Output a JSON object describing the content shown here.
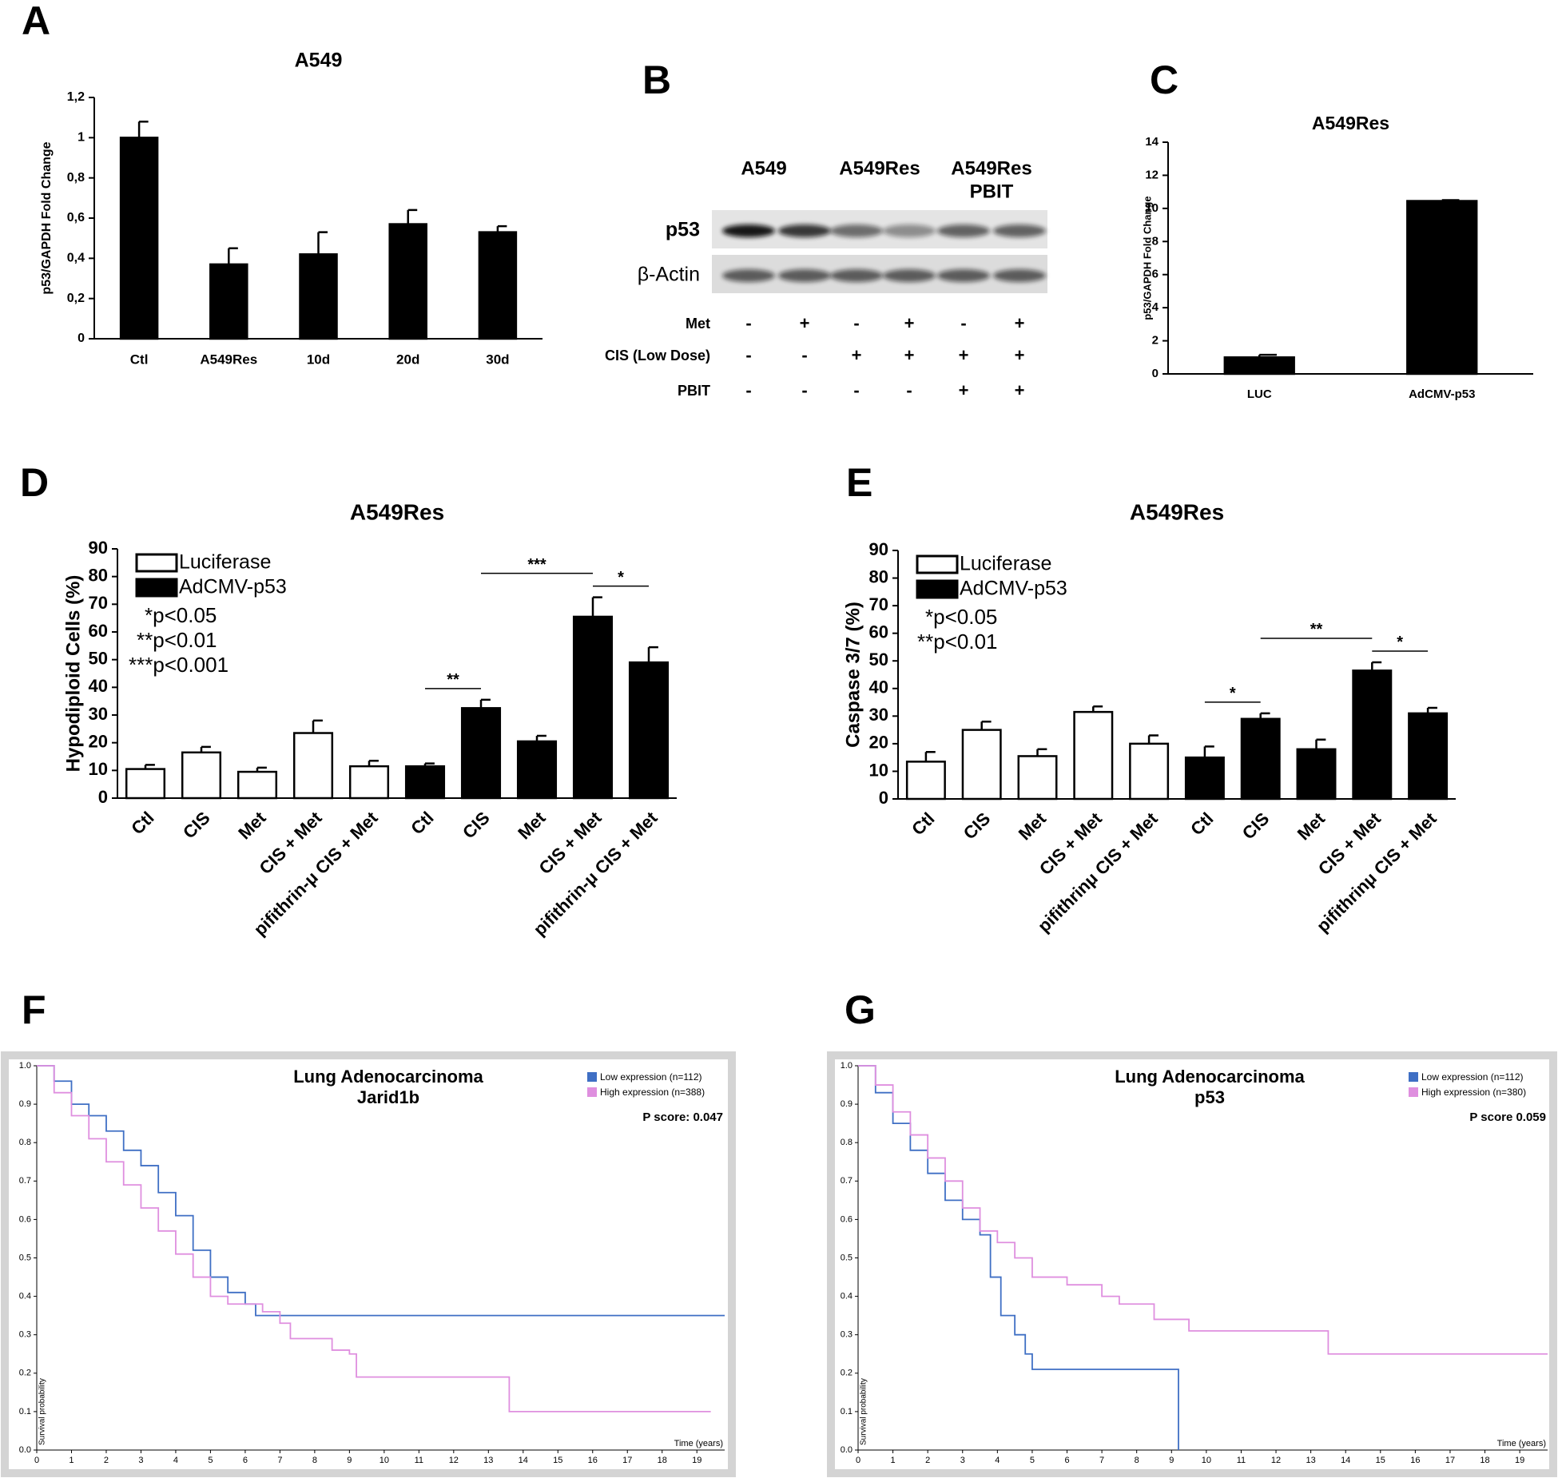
{
  "panel_labels": [
    "A",
    "B",
    "C",
    "D",
    "E",
    "F",
    "G"
  ],
  "blot": {
    "header_lines": [
      [
        "A549"
      ],
      [
        "A549Res"
      ],
      [
        "A549Res",
        "PBIT"
      ]
    ],
    "bands": [
      "p53",
      "β-Actin"
    ],
    "conditions": [
      {
        "label": "Met",
        "values": [
          "-",
          "+",
          "-",
          "+",
          "-",
          "+"
        ]
      },
      {
        "label": "CIS (Low Dose)",
        "values": [
          "-",
          "-",
          "+",
          "+",
          "+",
          "+"
        ]
      },
      {
        "label": "PBIT",
        "values": [
          "-",
          "-",
          "-",
          "-",
          "+",
          "+"
        ]
      }
    ]
  },
  "chart_data": [
    {
      "type": "bar",
      "title": "A549",
      "ylabel": "p53/GAPDH Fold Change",
      "categories": [
        "Ctl",
        "A549Res",
        "10d",
        "20d",
        "30d"
      ],
      "values": [
        1.0,
        0.37,
        0.42,
        0.57,
        0.53
      ],
      "errors": [
        0.08,
        0.08,
        0.11,
        0.07,
        0.03
      ],
      "color": "#000000",
      "ylim": [
        0,
        1.2
      ],
      "yticks": [
        0,
        {
          "value": 0.2,
          "label": "0,2"
        },
        {
          "value": 0.4,
          "label": "0,4"
        },
        {
          "value": 0.6,
          "label": "0,6"
        },
        {
          "value": 0.8,
          "label": "0,8"
        },
        1,
        {
          "value": 1.2,
          "label": "1,2"
        }
      ]
    },
    {
      "type": "bar",
      "title": "A549Res",
      "ylabel": "p53/GAPDH Fold Change",
      "categories": [
        "LUC",
        "AdCMV-p53"
      ],
      "values": [
        1.0,
        10.45
      ],
      "errors": [
        0.15,
        0.05
      ],
      "color": "#000000",
      "ylim": [
        0,
        14
      ],
      "yticks": [
        0,
        2,
        4,
        6,
        8,
        10,
        12,
        14
      ]
    },
    {
      "type": "bar",
      "title": "A549Res",
      "ylabel": "Hypodiploid Cells (%)",
      "categories": [
        "Ctl",
        "CIS",
        "Met",
        "CIS + Met",
        "pifithrin-μ CIS + Met",
        "Ctl",
        "CIS",
        "Met",
        "CIS + Met",
        "pifithrin-μ CIS + Met"
      ],
      "series": [
        {
          "name": "Luciferase",
          "color": "#ffffff",
          "values": [
            10.5,
            16.5,
            9.5,
            23.5,
            11.5,
            null,
            null,
            null,
            null,
            null
          ],
          "errors": [
            1.5,
            2,
            1.5,
            4.5,
            2,
            null,
            null,
            null,
            null,
            null
          ]
        },
        {
          "name": "AdCMV-p53",
          "color": "#000000",
          "values": [
            null,
            null,
            null,
            null,
            null,
            11.5,
            32.5,
            20.5,
            65.5,
            49
          ],
          "errors": [
            null,
            null,
            null,
            null,
            null,
            1,
            3,
            2,
            7,
            5.5
          ]
        }
      ],
      "notes": [
        "*p<0.05",
        "**p<0.01",
        "***p<0.001"
      ],
      "brackets": [
        {
          "between": [
            5,
            6
          ],
          "label": "**"
        },
        {
          "between": [
            6,
            8
          ],
          "label": "***"
        },
        {
          "between": [
            8,
            9
          ],
          "label": "*"
        }
      ],
      "ylim": [
        0,
        90
      ],
      "yticks": [
        0,
        10,
        20,
        30,
        40,
        50,
        60,
        70,
        80,
        90
      ]
    },
    {
      "type": "bar",
      "title": "A549Res",
      "ylabel": "Caspase 3/7 (%)",
      "categories": [
        "Ctl",
        "CIS",
        "Met",
        "CIS + Met",
        "pifithrinμ CIS + Met",
        "Ctl",
        "CIS",
        "Met",
        "CIS + Met",
        "pifithrinμ CIS + Met"
      ],
      "series": [
        {
          "name": "Luciferase",
          "color": "#ffffff",
          "values": [
            13.5,
            25,
            15.5,
            31.5,
            20,
            null,
            null,
            null,
            null,
            null
          ],
          "errors": [
            3.5,
            3,
            2.5,
            2,
            3,
            null,
            null,
            null,
            null,
            null
          ]
        },
        {
          "name": "AdCMV-p53",
          "color": "#000000",
          "values": [
            null,
            null,
            null,
            null,
            null,
            15,
            29,
            18,
            46.5,
            31
          ],
          "errors": [
            null,
            null,
            null,
            null,
            null,
            4,
            2,
            3.5,
            3,
            2
          ]
        }
      ],
      "notes": [
        "*p<0.05",
        "**p<0.01"
      ],
      "brackets": [
        {
          "between": [
            5,
            6
          ],
          "label": "*"
        },
        {
          "between": [
            6,
            8
          ],
          "label": "**"
        },
        {
          "between": [
            8,
            9
          ],
          "label": "*"
        }
      ],
      "ylim": [
        0,
        90
      ],
      "yticks": [
        0,
        10,
        20,
        30,
        40,
        50,
        60,
        70,
        80,
        90
      ]
    },
    {
      "type": "line",
      "drawstyle": "steps-post",
      "title": "Lung Adenocarcinoma",
      "subtitle": "Jarid1b",
      "annotation": "P score: 0.047",
      "xlabel": "Time (years)",
      "ylabel": "Survival probability",
      "series": [
        {
          "name": "Low expression (n=112)",
          "color": "#3f6fc4",
          "x": [
            0,
            0.5,
            1,
            1.5,
            2,
            2.5,
            3,
            3.5,
            4,
            4.5,
            5,
            5.5,
            6,
            6.3,
            19.8
          ],
          "values": [
            1.0,
            0.96,
            0.9,
            0.87,
            0.83,
            0.78,
            0.74,
            0.67,
            0.61,
            0.52,
            0.45,
            0.41,
            0.38,
            0.35,
            0.35
          ]
        },
        {
          "name": "High expression (n=388)",
          "color": "#df8fdf",
          "x": [
            0,
            0.5,
            1,
            1.5,
            2,
            2.5,
            3,
            3.5,
            4,
            4.5,
            5,
            5.5,
            6.5,
            7,
            7.3,
            8.5,
            9,
            9.2,
            13.6,
            19.4
          ],
          "values": [
            1.0,
            0.93,
            0.87,
            0.81,
            0.75,
            0.69,
            0.63,
            0.57,
            0.51,
            0.45,
            0.4,
            0.38,
            0.36,
            0.33,
            0.29,
            0.26,
            0.25,
            0.19,
            0.1,
            0.1
          ]
        }
      ],
      "xlim": [
        0,
        19.8
      ],
      "xticks": [
        0,
        1,
        2,
        3,
        4,
        5,
        6,
        7,
        8,
        9,
        10,
        11,
        12,
        13,
        14,
        15,
        16,
        17,
        18,
        19
      ],
      "ylim": [
        0,
        1
      ],
      "yticks": [
        {
          "value": 0,
          "label": "0.0"
        },
        0.1,
        0.2,
        0.3,
        0.4,
        0.5,
        0.6,
        0.7,
        0.8,
        0.9,
        {
          "value": 1,
          "label": "1.0"
        }
      ]
    },
    {
      "type": "line",
      "drawstyle": "steps-post",
      "title": "Lung Adenocarcinoma",
      "subtitle": "p53",
      "annotation": "P score 0.059",
      "xlabel": "Time (years)",
      "ylabel": "Survival probability",
      "series": [
        {
          "name": "Low expression (n=112)",
          "color": "#3f6fc4",
          "x": [
            0,
            0.5,
            1,
            1.5,
            2,
            2.5,
            3,
            3.5,
            3.8,
            4.1,
            4.5,
            4.8,
            5,
            9.2
          ],
          "values": [
            1.0,
            0.93,
            0.85,
            0.78,
            0.72,
            0.65,
            0.6,
            0.56,
            0.45,
            0.35,
            0.3,
            0.25,
            0.21,
            0.0
          ]
        },
        {
          "name": "High expression (n=380)",
          "color": "#df8fdf",
          "x": [
            0,
            0.5,
            1,
            1.5,
            2,
            2.5,
            3,
            3.5,
            4,
            4.5,
            5,
            6,
            7,
            7.5,
            8.5,
            9.5,
            13.5,
            19.8
          ],
          "values": [
            1.0,
            0.95,
            0.88,
            0.82,
            0.76,
            0.7,
            0.63,
            0.57,
            0.54,
            0.5,
            0.45,
            0.43,
            0.4,
            0.38,
            0.34,
            0.31,
            0.25,
            0.25
          ]
        }
      ],
      "xlim": [
        0,
        19.8
      ],
      "xticks": [
        0,
        1,
        2,
        3,
        4,
        5,
        6,
        7,
        8,
        9,
        10,
        11,
        12,
        13,
        14,
        15,
        16,
        17,
        18,
        19
      ],
      "ylim": [
        0,
        1
      ],
      "yticks": [
        {
          "value": 0,
          "label": "0.0"
        },
        0.1,
        0.2,
        0.3,
        0.4,
        0.5,
        0.6,
        0.7,
        0.8,
        0.9,
        {
          "value": 1,
          "label": "1.0"
        }
      ]
    }
  ]
}
